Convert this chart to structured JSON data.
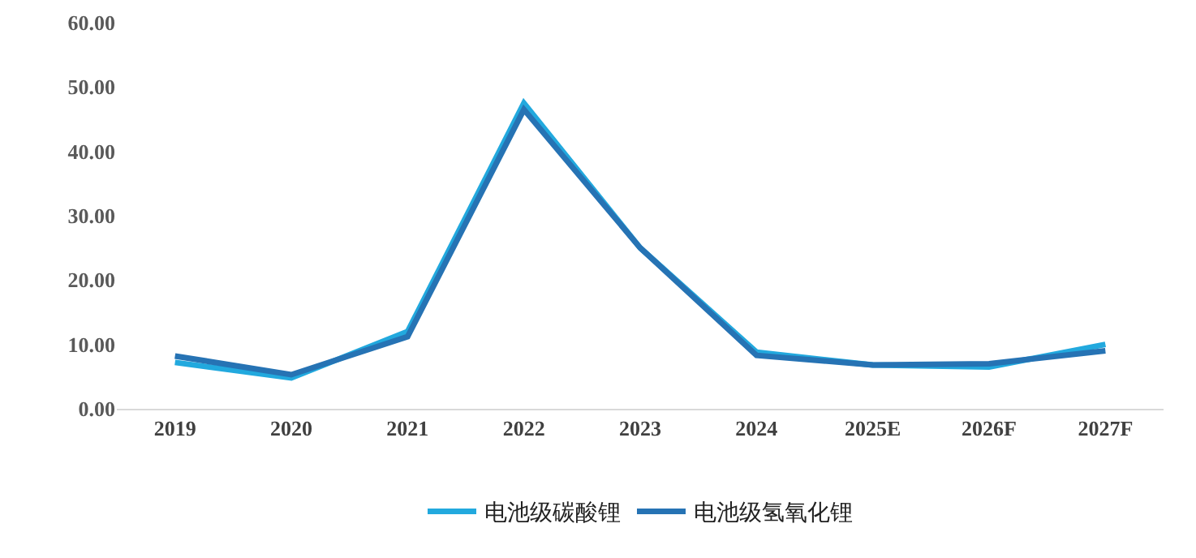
{
  "chart_data": {
    "type": "line",
    "categories": [
      "2019",
      "2020",
      "2021",
      "2022",
      "2023",
      "2024",
      "2025E",
      "2026F",
      "2027F"
    ],
    "series": [
      {
        "name": "电池级碳酸锂",
        "color": "#22a9de",
        "values": [
          7.2,
          4.8,
          12,
          47.5,
          25,
          8.8,
          6.8,
          6.5,
          10
        ]
      },
      {
        "name": "电池级氢氧化锂",
        "color": "#2673b4",
        "values": [
          8.2,
          5.3,
          11.2,
          46.5,
          25,
          8.3,
          6.8,
          7,
          9
        ]
      }
    ],
    "ylim": [
      0,
      60
    ],
    "yticks": [
      {
        "value": 0,
        "label": "0.00"
      },
      {
        "value": 10,
        "label": "10.00"
      },
      {
        "value": 20,
        "label": "20.00"
      },
      {
        "value": 30,
        "label": "30.00"
      },
      {
        "value": 40,
        "label": "40.00"
      },
      {
        "value": 50,
        "label": "50.00"
      },
      {
        "value": 60,
        "label": "60.00"
      }
    ],
    "grid": false,
    "legend": "bottom",
    "marker": "none",
    "line_style": "solid"
  }
}
